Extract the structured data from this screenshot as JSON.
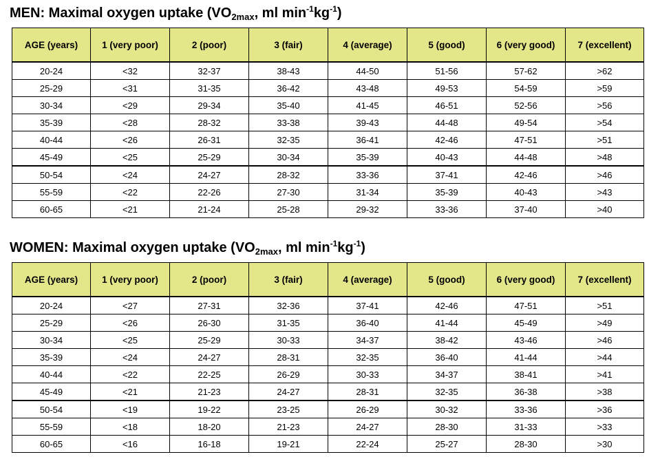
{
  "colors": {
    "header_bg": "#e4e68a",
    "border": "#000000"
  },
  "men": {
    "title": {
      "prefix": "MEN",
      "main": ": Maximal oxygen uptake (VO",
      "sub": "2max",
      "mid": ", ml min",
      "sup1": "-1",
      "kg": "kg",
      "sup2": "-1",
      "close": ")"
    },
    "headers": [
      "AGE (years)",
      "1 (very poor)",
      "2 (poor)",
      "3 (fair)",
      "4 (average)",
      "5 (good)",
      "6 (very good)",
      "7 (excellent)"
    ],
    "rows": [
      [
        "20-24",
        "<32",
        "32-37",
        "38-43",
        "44-50",
        "51-56",
        "57-62",
        ">62"
      ],
      [
        "25-29",
        "<31",
        "31-35",
        "36-42",
        "43-48",
        "49-53",
        "54-59",
        ">59"
      ],
      [
        "30-34",
        "<29",
        "29-34",
        "35-40",
        "41-45",
        "46-51",
        "52-56",
        ">56"
      ],
      [
        "35-39",
        "<28",
        "28-32",
        "33-38",
        "39-43",
        "44-48",
        "49-54",
        ">54"
      ],
      [
        "40-44",
        "<26",
        "26-31",
        "32-35",
        "36-41",
        "42-46",
        "47-51",
        ">51"
      ],
      [
        "45-49",
        "<25",
        "25-29",
        "30-34",
        "35-39",
        "40-43",
        "44-48",
        ">48"
      ],
      [
        "50-54",
        "<24",
        "24-27",
        "28-32",
        "33-36",
        "37-41",
        "42-46",
        ">46"
      ],
      [
        "55-59",
        "<22",
        "22-26",
        "27-30",
        "31-34",
        "35-39",
        "40-43",
        ">43"
      ],
      [
        "60-65",
        "<21",
        "21-24",
        "25-28",
        "29-32",
        "33-36",
        "37-40",
        ">40"
      ]
    ]
  },
  "women": {
    "title": {
      "prefix": "WOMEN",
      "main": ": Maximal oxygen uptake (VO",
      "sub": "2max",
      "mid": ", ml min",
      "sup1": "-1",
      "kg": "kg",
      "sup2": "-1",
      "close": ")"
    },
    "headers": [
      "AGE (years)",
      "1 (very poor)",
      "2 (poor)",
      "3 (fair)",
      "4 (average)",
      "5 (good)",
      "6 (very good)",
      "7 (excellent)"
    ],
    "rows": [
      [
        "20-24",
        "<27",
        "27-31",
        "32-36",
        "37-41",
        "42-46",
        "47-51",
        ">51"
      ],
      [
        "25-29",
        "<26",
        "26-30",
        "31-35",
        "36-40",
        "41-44",
        "45-49",
        ">49"
      ],
      [
        "30-34",
        "<25",
        "25-29",
        "30-33",
        "34-37",
        "38-42",
        "43-46",
        ">46"
      ],
      [
        "35-39",
        "<24",
        "24-27",
        "28-31",
        "32-35",
        "36-40",
        "41-44",
        ">44"
      ],
      [
        "40-44",
        "<22",
        "22-25",
        "26-29",
        "30-33",
        "34-37",
        "38-41",
        ">41"
      ],
      [
        "45-49",
        "<21",
        "21-23",
        "24-27",
        "28-31",
        "32-35",
        "36-38",
        ">38"
      ],
      [
        "50-54",
        "<19",
        "19-22",
        "23-25",
        "26-29",
        "30-32",
        "33-36",
        ">36"
      ],
      [
        "55-59",
        "<18",
        "18-20",
        "21-23",
        "24-27",
        "28-30",
        "31-33",
        ">33"
      ],
      [
        "60-65",
        "<16",
        "16-18",
        "19-21",
        "22-24",
        "25-27",
        "28-30",
        ">30"
      ]
    ]
  }
}
